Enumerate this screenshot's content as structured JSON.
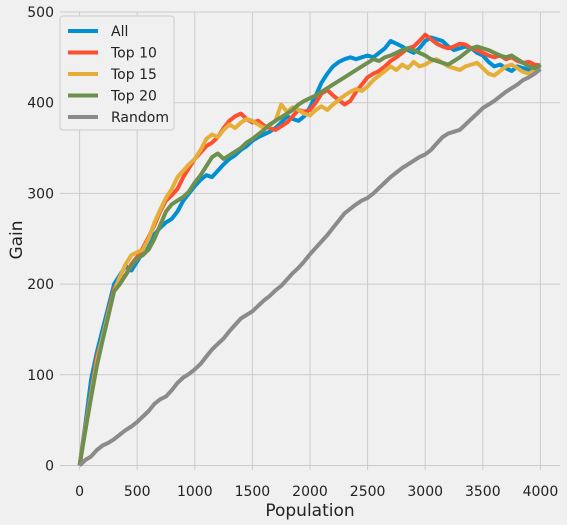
{
  "chart_data": {
    "type": "line",
    "title": "",
    "xlabel": "Population",
    "ylabel": "Gain",
    "xlim": [
      -170,
      4170
    ],
    "ylim": [
      -5,
      500
    ],
    "xticks": [
      0,
      500,
      1000,
      1500,
      2000,
      2500,
      3000,
      3500,
      4000
    ],
    "yticks": [
      0,
      100,
      200,
      300,
      400,
      500
    ],
    "xtick_labels": [
      "0",
      "500",
      "1000",
      "1500",
      "2000",
      "2500",
      "3000",
      "3500",
      "4000"
    ],
    "ytick_labels": [
      "0",
      "100",
      "200",
      "300",
      "400",
      "500"
    ],
    "grid": true,
    "legend_position": "top-left",
    "series": [
      {
        "name": "All",
        "color": "#008fd5",
        "x": [
          0,
          50,
          100,
          150,
          200,
          250,
          300,
          350,
          400,
          450,
          500,
          550,
          600,
          650,
          700,
          750,
          800,
          850,
          900,
          950,
          1000,
          1050,
          1100,
          1150,
          1200,
          1250,
          1300,
          1350,
          1400,
          1450,
          1500,
          1550,
          1600,
          1650,
          1700,
          1750,
          1800,
          1850,
          1900,
          1950,
          2000,
          2050,
          2100,
          2150,
          2200,
          2250,
          2300,
          2350,
          2400,
          2450,
          2500,
          2550,
          2600,
          2650,
          2700,
          2750,
          2800,
          2850,
          2900,
          2950,
          3000,
          3050,
          3100,
          3150,
          3200,
          3250,
          3300,
          3350,
          3400,
          3450,
          3500,
          3550,
          3600,
          3650,
          3700,
          3750,
          3800,
          3850,
          3900,
          3950,
          4000
        ],
        "y": [
          0,
          45,
          95,
          125,
          150,
          175,
          200,
          210,
          220,
          215,
          225,
          235,
          245,
          255,
          262,
          268,
          272,
          280,
          292,
          300,
          308,
          315,
          320,
          318,
          325,
          332,
          338,
          342,
          348,
          352,
          358,
          362,
          365,
          368,
          372,
          378,
          385,
          382,
          380,
          385,
          395,
          408,
          422,
          432,
          440,
          445,
          448,
          450,
          448,
          450,
          452,
          450,
          455,
          460,
          468,
          465,
          462,
          458,
          455,
          460,
          468,
          472,
          470,
          468,
          462,
          458,
          460,
          462,
          460,
          455,
          452,
          445,
          440,
          442,
          438,
          435,
          440,
          438,
          436,
          438,
          440
        ]
      },
      {
        "name": "Top 10",
        "color": "#fc4f30",
        "x": [
          0,
          50,
          100,
          150,
          200,
          250,
          300,
          350,
          400,
          450,
          500,
          550,
          600,
          650,
          700,
          750,
          800,
          850,
          900,
          950,
          1000,
          1050,
          1100,
          1150,
          1200,
          1250,
          1300,
          1350,
          1400,
          1450,
          1500,
          1550,
          1600,
          1650,
          1700,
          1750,
          1800,
          1850,
          1900,
          1950,
          2000,
          2050,
          2100,
          2150,
          2200,
          2250,
          2300,
          2350,
          2400,
          2450,
          2500,
          2550,
          2600,
          2650,
          2700,
          2750,
          2800,
          2850,
          2900,
          2950,
          3000,
          3050,
          3100,
          3150,
          3200,
          3250,
          3300,
          3350,
          3400,
          3450,
          3500,
          3550,
          3600,
          3650,
          3700,
          3750,
          3800,
          3850,
          3900,
          3950,
          4000
        ],
        "y": [
          0,
          42,
          80,
          120,
          140,
          170,
          195,
          205,
          210,
          222,
          230,
          240,
          252,
          265,
          280,
          292,
          298,
          305,
          318,
          328,
          338,
          345,
          352,
          356,
          362,
          372,
          380,
          385,
          388,
          382,
          378,
          380,
          375,
          372,
          370,
          374,
          378,
          385,
          392,
          390,
          392,
          400,
          410,
          414,
          408,
          403,
          398,
          402,
          412,
          420,
          428,
          432,
          435,
          440,
          446,
          450,
          455,
          460,
          462,
          468,
          475,
          470,
          465,
          462,
          460,
          462,
          465,
          464,
          460,
          458,
          455,
          452,
          450,
          452,
          448,
          450,
          446,
          444,
          445,
          442,
          441
        ]
      },
      {
        "name": "Top 15",
        "color": "#e5ae38",
        "x": [
          0,
          50,
          100,
          150,
          200,
          250,
          300,
          350,
          400,
          450,
          500,
          550,
          600,
          650,
          700,
          750,
          800,
          850,
          900,
          950,
          1000,
          1050,
          1100,
          1150,
          1200,
          1250,
          1300,
          1350,
          1400,
          1450,
          1500,
          1550,
          1600,
          1650,
          1700,
          1750,
          1800,
          1850,
          1900,
          1950,
          2000,
          2050,
          2100,
          2150,
          2200,
          2250,
          2300,
          2350,
          2400,
          2450,
          2500,
          2550,
          2600,
          2650,
          2700,
          2750,
          2800,
          2850,
          2900,
          2950,
          3000,
          3050,
          3100,
          3150,
          3200,
          3250,
          3300,
          3350,
          3400,
          3450,
          3500,
          3550,
          3600,
          3650,
          3700,
          3750,
          3800,
          3850,
          3900,
          3950,
          4000
        ],
        "y": [
          0,
          40,
          78,
          115,
          142,
          168,
          192,
          208,
          222,
          232,
          235,
          238,
          250,
          268,
          282,
          295,
          305,
          318,
          325,
          332,
          338,
          348,
          360,
          365,
          362,
          370,
          376,
          372,
          378,
          382,
          380,
          376,
          372,
          375,
          380,
          398,
          390,
          395,
          392,
          388,
          386,
          392,
          396,
          392,
          398,
          403,
          408,
          412,
          415,
          413,
          418,
          425,
          430,
          435,
          440,
          436,
          442,
          438,
          445,
          440,
          442,
          446,
          448,
          444,
          440,
          438,
          436,
          440,
          442,
          444,
          438,
          432,
          430,
          435,
          440,
          442,
          438,
          434,
          432,
          436,
          442
        ]
      },
      {
        "name": "Top 20",
        "color": "#6d904f",
        "x": [
          0,
          50,
          100,
          150,
          200,
          250,
          300,
          350,
          400,
          450,
          500,
          550,
          600,
          650,
          700,
          750,
          800,
          850,
          900,
          950,
          1000,
          1050,
          1100,
          1150,
          1200,
          1250,
          1300,
          1350,
          1400,
          1450,
          1500,
          1550,
          1600,
          1650,
          1700,
          1750,
          1800,
          1850,
          1900,
          1950,
          2000,
          2050,
          2100,
          2150,
          2200,
          2250,
          2300,
          2350,
          2400,
          2450,
          2500,
          2550,
          2600,
          2650,
          2700,
          2750,
          2800,
          2850,
          2900,
          2950,
          3000,
          3050,
          3100,
          3150,
          3200,
          3250,
          3300,
          3350,
          3400,
          3450,
          3500,
          3550,
          3600,
          3650,
          3700,
          3750,
          3800,
          3850,
          3900,
          3950,
          4000
        ],
        "y": [
          0,
          38,
          75,
          110,
          138,
          165,
          192,
          200,
          210,
          220,
          228,
          232,
          238,
          250,
          265,
          280,
          288,
          292,
          296,
          302,
          312,
          320,
          330,
          340,
          344,
          338,
          342,
          346,
          350,
          356,
          360,
          365,
          370,
          376,
          380,
          384,
          388,
          392,
          398,
          402,
          405,
          408,
          412,
          416,
          420,
          424,
          428,
          432,
          436,
          440,
          444,
          448,
          446,
          450,
          452,
          455,
          458,
          460,
          458,
          455,
          452,
          448,
          446,
          444,
          442,
          446,
          450,
          455,
          460,
          462,
          460,
          458,
          455,
          452,
          450,
          452,
          448,
          444,
          440,
          438,
          442
        ]
      },
      {
        "name": "Random",
        "color": "#8b8b8b",
        "x": [
          0,
          50,
          100,
          150,
          200,
          250,
          300,
          350,
          400,
          450,
          500,
          550,
          600,
          650,
          700,
          750,
          800,
          850,
          900,
          950,
          1000,
          1050,
          1100,
          1150,
          1200,
          1250,
          1300,
          1350,
          1400,
          1450,
          1500,
          1550,
          1600,
          1650,
          1700,
          1750,
          1800,
          1850,
          1900,
          1950,
          2000,
          2050,
          2100,
          2150,
          2200,
          2250,
          2300,
          2350,
          2400,
          2450,
          2500,
          2550,
          2600,
          2650,
          2700,
          2750,
          2800,
          2850,
          2900,
          2950,
          3000,
          3050,
          3100,
          3150,
          3200,
          3250,
          3300,
          3350,
          3400,
          3450,
          3500,
          3550,
          3600,
          3650,
          3700,
          3750,
          3800,
          3850,
          3900,
          3950,
          4000
        ],
        "y": [
          0,
          6,
          10,
          17,
          22,
          25,
          29,
          34,
          39,
          43,
          48,
          54,
          60,
          68,
          73,
          76,
          83,
          91,
          97,
          101,
          106,
          112,
          120,
          128,
          134,
          140,
          148,
          155,
          162,
          166,
          170,
          176,
          182,
          187,
          193,
          198,
          205,
          212,
          218,
          225,
          233,
          240,
          247,
          254,
          262,
          270,
          278,
          283,
          288,
          292,
          295,
          300,
          306,
          312,
          318,
          323,
          328,
          332,
          336,
          340,
          343,
          348,
          355,
          362,
          366,
          368,
          370,
          376,
          382,
          388,
          394,
          398,
          402,
          407,
          412,
          416,
          420,
          425,
          428,
          432,
          437
        ]
      }
    ]
  }
}
